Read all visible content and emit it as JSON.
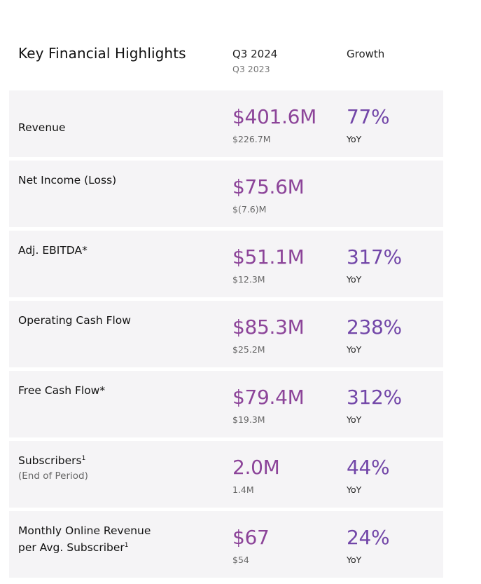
{
  "header": {
    "title": "Key Financial Highlights",
    "current_period": "Q3 2024",
    "prior_period": "Q3 2023",
    "growth_label": "Growth"
  },
  "rows": [
    {
      "label": "Revenue",
      "label_line2": "",
      "sup": "",
      "sub": "",
      "value": "$401.6M",
      "prior": "$226.7M",
      "growth": "77%",
      "growth_unit": "YoY"
    },
    {
      "label": "Net Income (Loss)",
      "label_line2": "",
      "sup": "",
      "sub": "",
      "value": "$75.6M",
      "prior": "$(7.6)M",
      "growth": "",
      "growth_unit": ""
    },
    {
      "label": "Adj. EBITDA*",
      "label_line2": "",
      "sup": "",
      "sub": "",
      "value": "$51.1M",
      "prior": "$12.3M",
      "growth": "317%",
      "growth_unit": "YoY"
    },
    {
      "label": "Operating Cash Flow",
      "label_line2": "",
      "sup": "",
      "sub": "",
      "value": "$85.3M",
      "prior": "$25.2M",
      "growth": "238%",
      "growth_unit": "YoY"
    },
    {
      "label": "Free Cash Flow*",
      "label_line2": "",
      "sup": "",
      "sub": "",
      "value": "$79.4M",
      "prior": "$19.3M",
      "growth": "312%",
      "growth_unit": "YoY"
    },
    {
      "label": "Subscribers",
      "label_line2": "",
      "sup": "1",
      "sub": "(End of Period)",
      "value": "2.0M",
      "prior": "1.4M",
      "growth": "44%",
      "growth_unit": "YoY"
    },
    {
      "label": "Monthly Online Revenue",
      "label_line2": "per Avg. Subscriber",
      "sup": "1",
      "sub": "",
      "value": "$67",
      "prior": "$54",
      "growth": "24%",
      "growth_unit": "YoY"
    }
  ],
  "colors": {
    "value": "#8c4499",
    "growth": "#7246a8",
    "row_background": "#f5f4f6"
  }
}
